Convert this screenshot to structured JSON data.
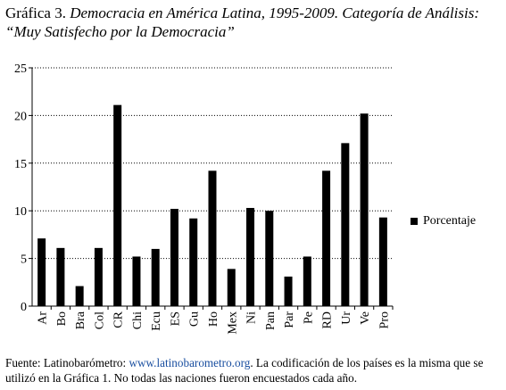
{
  "title": {
    "lead": "Gráfica 3.",
    "rest": " Democracia en América Latina, 1995-2009. Categoría de Análisis: “Muy Satisfecho por la Democracia”"
  },
  "source": {
    "prefix": "Fuente: Latinobarómetro: ",
    "url": "www.latinobarometro.org",
    "suffix": ". La codificación de los países es la misma que se utilizó en la Gráfica 1. No todas las naciones fueron encuestados cada año."
  },
  "chart_data": {
    "type": "bar",
    "categories": [
      "Ar",
      "Bo",
      "Bra",
      "Col",
      "CR",
      "Chi",
      "Ecu",
      "ES",
      "Gu",
      "Ho",
      "Mex",
      "Ni",
      "Pan",
      "Par",
      "Pe",
      "RD",
      "Ur",
      "Ve",
      "Pro"
    ],
    "series": [
      {
        "name": "Porcentaje",
        "values": [
          7.1,
          6.1,
          2.1,
          6.1,
          21.1,
          5.2,
          6.0,
          10.2,
          9.2,
          14.2,
          3.9,
          10.3,
          10.0,
          3.1,
          5.2,
          14.2,
          17.1,
          20.2,
          9.3
        ]
      }
    ],
    "ylim": [
      0,
      25
    ],
    "yticks": [
      0,
      5,
      10,
      15,
      20,
      25
    ],
    "grid": "dotted horizontal",
    "legend_position": "right",
    "bar_color": "#000000"
  }
}
